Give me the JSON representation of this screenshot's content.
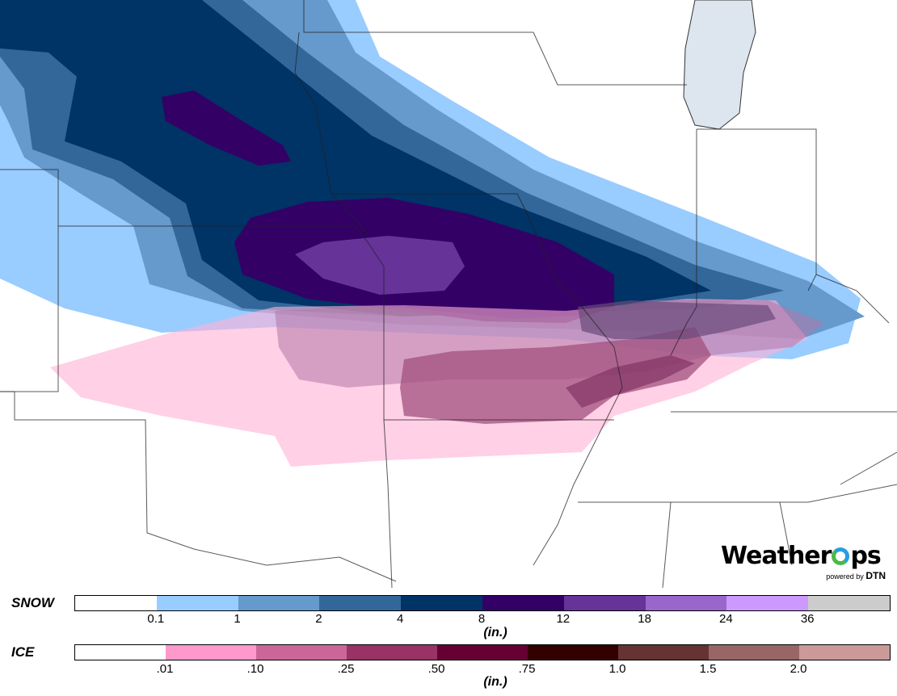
{
  "logo": {
    "brand_part1": "Weather",
    "brand_part2": "ps",
    "powered_by": "powered by",
    "company": "DTN"
  },
  "legend": {
    "snow": {
      "label": "SNOW",
      "unit": "(in.)",
      "colors": [
        "#ffffff",
        "#99ccff",
        "#6699cc",
        "#336699",
        "#003366",
        "#330066",
        "#663399",
        "#9966cc",
        "#cc99ff",
        "#cccccc"
      ],
      "ticks": [
        "0.1",
        "1",
        "2",
        "4",
        "8",
        "12",
        "18",
        "24",
        "36"
      ]
    },
    "ice": {
      "label": "ICE",
      "unit": "(in.)",
      "colors": [
        "#ffffff",
        "#ff99cc",
        "#cc6699",
        "#993366",
        "#660033",
        "#330000",
        "#663333",
        "#996666",
        "#cc9999"
      ],
      "ticks": [
        ".01",
        ".10",
        ".25",
        ".50",
        ".75",
        "1.0",
        "1.5",
        "2.0"
      ]
    }
  }
}
